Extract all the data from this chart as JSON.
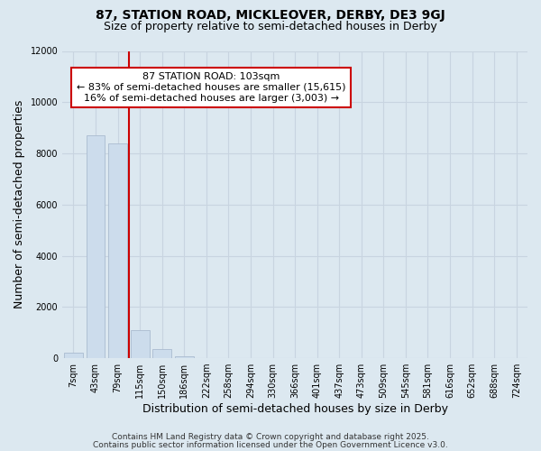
{
  "title_line1": "87, STATION ROAD, MICKLEOVER, DERBY, DE3 9GJ",
  "title_line2": "Size of property relative to semi-detached houses in Derby",
  "xlabel": "Distribution of semi-detached houses by size in Derby",
  "ylabel": "Number of semi-detached properties",
  "annotation_title": "87 STATION ROAD: 103sqm",
  "annotation_line2": "← 83% of semi-detached houses are smaller (15,615)",
  "annotation_line3": "16% of semi-detached houses are larger (3,003) →",
  "footer_line1": "Contains HM Land Registry data © Crown copyright and database right 2025.",
  "footer_line2": "Contains public sector information licensed under the Open Government Licence v3.0.",
  "categories": [
    "7sqm",
    "43sqm",
    "79sqm",
    "115sqm",
    "150sqm",
    "186sqm",
    "222sqm",
    "258sqm",
    "294sqm",
    "330sqm",
    "366sqm",
    "401sqm",
    "437sqm",
    "473sqm",
    "509sqm",
    "545sqm",
    "581sqm",
    "616sqm",
    "652sqm",
    "688sqm",
    "724sqm"
  ],
  "values": [
    200,
    8700,
    8400,
    1100,
    350,
    70,
    10,
    0,
    0,
    0,
    0,
    0,
    0,
    0,
    0,
    0,
    0,
    0,
    0,
    0,
    0
  ],
  "bar_color": "#ccdcec",
  "bar_edge_color": "#aabbd0",
  "redline_x": 2.5,
  "ylim": [
    0,
    12000
  ],
  "yticks": [
    0,
    2000,
    4000,
    6000,
    8000,
    10000,
    12000
  ],
  "grid_color": "#c8d4e0",
  "background_color": "#dce8f0",
  "plot_bg_color": "#dce8f0",
  "annotation_box_color": "#ffffff",
  "annotation_box_edge": "#cc0000",
  "redline_color": "#cc0000",
  "title_fontsize": 10,
  "subtitle_fontsize": 9,
  "axis_label_fontsize": 9,
  "tick_fontsize": 7,
  "annotation_fontsize": 8,
  "footer_fontsize": 6.5
}
